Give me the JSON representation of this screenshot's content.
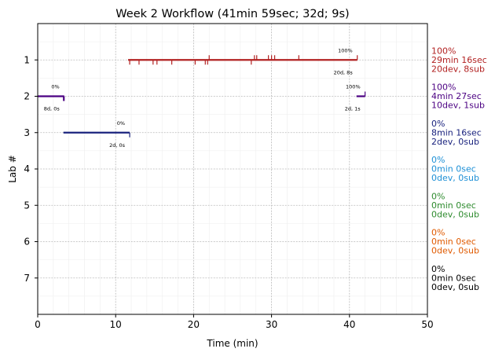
{
  "chart_data": {
    "type": "timeline",
    "title": "Week 2 Workflow (41min 59sec; 32d; 9s)",
    "xlabel": "Time (min)",
    "ylabel": "Lab #",
    "xlim": [
      0,
      50
    ],
    "ylim": [
      8,
      0
    ],
    "xticks": [
      "0",
      "10",
      "20",
      "30",
      "40",
      "50"
    ],
    "yticks": [
      "1",
      "2",
      "3",
      "4",
      "5",
      "6",
      "7"
    ],
    "grid": true,
    "labs": [
      {
        "lab": 1,
        "color": "#b22222",
        "segments": [
          [
            11.6,
            41.0
          ]
        ],
        "commits": [
          11.8,
          13.0,
          14.8,
          15.3,
          17.2,
          20.2,
          21.5,
          21.8,
          27.4
        ],
        "submissions": [
          22.0,
          27.8,
          28.1,
          29.6,
          30.0,
          30.4,
          33.5,
          41.0
        ],
        "start_label": "",
        "end_label": "100%",
        "counts_label": "20d, 8s",
        "summary": [
          "100%",
          "29min 16sec",
          "20dev, 8sub"
        ]
      },
      {
        "lab": 2,
        "color": "#4b0082",
        "segments": [
          [
            0.0,
            3.4
          ],
          [
            40.9,
            42.0
          ]
        ],
        "commits": [
          3.3,
          3.4
        ],
        "submissions": [
          42.0
        ],
        "labels": [
          {
            "pct": "0%",
            "counts": "8d, 0s"
          },
          {
            "pct": "100%",
            "counts": "2d, 1s"
          }
        ],
        "summary": [
          "100%",
          "4min 27sec",
          "10dev, 1sub"
        ]
      },
      {
        "lab": 3,
        "color": "#1a237e",
        "segments": [
          [
            3.3,
            11.8
          ]
        ],
        "commits": [
          11.8
        ],
        "submissions": [],
        "labels": [
          {
            "pct": "0%",
            "counts": "2d, 0s"
          }
        ],
        "summary": [
          "0%",
          "8min 16sec",
          "2dev, 0sub"
        ]
      },
      {
        "lab": 4,
        "color": "#1e90d6",
        "segments": [],
        "commits": [],
        "submissions": [],
        "labels": [],
        "summary": [
          "0%",
          "0min 0sec",
          "0dev, 0sub"
        ]
      },
      {
        "lab": 5,
        "color": "#2e8b2e",
        "segments": [],
        "commits": [],
        "submissions": [],
        "labels": [],
        "summary": [
          "0%",
          "0min 0sec",
          "0dev, 0sub"
        ]
      },
      {
        "lab": 6,
        "color": "#e05a00",
        "segments": [],
        "commits": [],
        "submissions": [],
        "labels": [],
        "summary": [
          "0%",
          "0min 0sec",
          "0dev, 0sub"
        ]
      },
      {
        "lab": 7,
        "color": "#000000",
        "segments": [],
        "commits": [],
        "submissions": [],
        "labels": [],
        "summary": [
          "0%",
          "0min 0sec",
          "0dev, 0sub"
        ]
      }
    ]
  }
}
